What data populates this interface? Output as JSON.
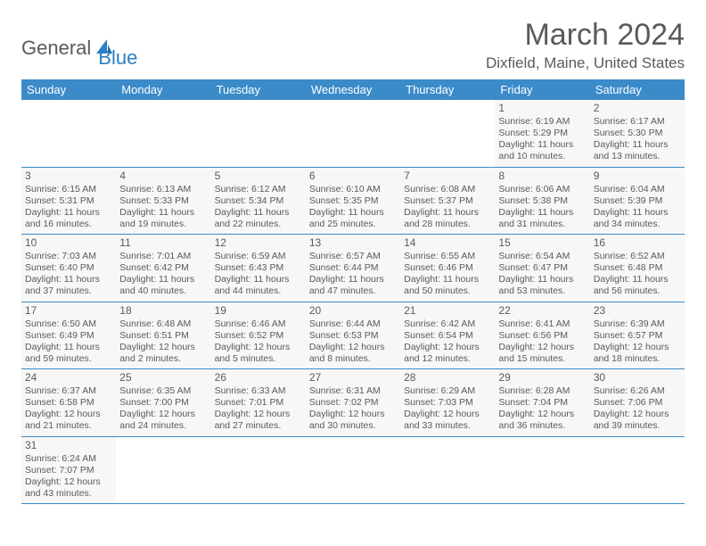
{
  "logo": {
    "general": "General",
    "blue": "Blue"
  },
  "title": "March 2024",
  "location": "Dixfield, Maine, United States",
  "colors": {
    "header_bg": "#3b8bc9",
    "header_text": "#ffffff",
    "cell_bg": "#f7f7f7",
    "border": "#3b8bc9",
    "text": "#5a5a5a",
    "accent": "#2a7fc5"
  },
  "days_of_week": [
    "Sunday",
    "Monday",
    "Tuesday",
    "Wednesday",
    "Thursday",
    "Friday",
    "Saturday"
  ],
  "weeks": [
    [
      null,
      null,
      null,
      null,
      null,
      {
        "n": "1",
        "sunrise": "Sunrise: 6:19 AM",
        "sunset": "Sunset: 5:29 PM",
        "daylight": "Daylight: 11 hours and 10 minutes."
      },
      {
        "n": "2",
        "sunrise": "Sunrise: 6:17 AM",
        "sunset": "Sunset: 5:30 PM",
        "daylight": "Daylight: 11 hours and 13 minutes."
      }
    ],
    [
      {
        "n": "3",
        "sunrise": "Sunrise: 6:15 AM",
        "sunset": "Sunset: 5:31 PM",
        "daylight": "Daylight: 11 hours and 16 minutes."
      },
      {
        "n": "4",
        "sunrise": "Sunrise: 6:13 AM",
        "sunset": "Sunset: 5:33 PM",
        "daylight": "Daylight: 11 hours and 19 minutes."
      },
      {
        "n": "5",
        "sunrise": "Sunrise: 6:12 AM",
        "sunset": "Sunset: 5:34 PM",
        "daylight": "Daylight: 11 hours and 22 minutes."
      },
      {
        "n": "6",
        "sunrise": "Sunrise: 6:10 AM",
        "sunset": "Sunset: 5:35 PM",
        "daylight": "Daylight: 11 hours and 25 minutes."
      },
      {
        "n": "7",
        "sunrise": "Sunrise: 6:08 AM",
        "sunset": "Sunset: 5:37 PM",
        "daylight": "Daylight: 11 hours and 28 minutes."
      },
      {
        "n": "8",
        "sunrise": "Sunrise: 6:06 AM",
        "sunset": "Sunset: 5:38 PM",
        "daylight": "Daylight: 11 hours and 31 minutes."
      },
      {
        "n": "9",
        "sunrise": "Sunrise: 6:04 AM",
        "sunset": "Sunset: 5:39 PM",
        "daylight": "Daylight: 11 hours and 34 minutes."
      }
    ],
    [
      {
        "n": "10",
        "sunrise": "Sunrise: 7:03 AM",
        "sunset": "Sunset: 6:40 PM",
        "daylight": "Daylight: 11 hours and 37 minutes."
      },
      {
        "n": "11",
        "sunrise": "Sunrise: 7:01 AM",
        "sunset": "Sunset: 6:42 PM",
        "daylight": "Daylight: 11 hours and 40 minutes."
      },
      {
        "n": "12",
        "sunrise": "Sunrise: 6:59 AM",
        "sunset": "Sunset: 6:43 PM",
        "daylight": "Daylight: 11 hours and 44 minutes."
      },
      {
        "n": "13",
        "sunrise": "Sunrise: 6:57 AM",
        "sunset": "Sunset: 6:44 PM",
        "daylight": "Daylight: 11 hours and 47 minutes."
      },
      {
        "n": "14",
        "sunrise": "Sunrise: 6:55 AM",
        "sunset": "Sunset: 6:46 PM",
        "daylight": "Daylight: 11 hours and 50 minutes."
      },
      {
        "n": "15",
        "sunrise": "Sunrise: 6:54 AM",
        "sunset": "Sunset: 6:47 PM",
        "daylight": "Daylight: 11 hours and 53 minutes."
      },
      {
        "n": "16",
        "sunrise": "Sunrise: 6:52 AM",
        "sunset": "Sunset: 6:48 PM",
        "daylight": "Daylight: 11 hours and 56 minutes."
      }
    ],
    [
      {
        "n": "17",
        "sunrise": "Sunrise: 6:50 AM",
        "sunset": "Sunset: 6:49 PM",
        "daylight": "Daylight: 11 hours and 59 minutes."
      },
      {
        "n": "18",
        "sunrise": "Sunrise: 6:48 AM",
        "sunset": "Sunset: 6:51 PM",
        "daylight": "Daylight: 12 hours and 2 minutes."
      },
      {
        "n": "19",
        "sunrise": "Sunrise: 6:46 AM",
        "sunset": "Sunset: 6:52 PM",
        "daylight": "Daylight: 12 hours and 5 minutes."
      },
      {
        "n": "20",
        "sunrise": "Sunrise: 6:44 AM",
        "sunset": "Sunset: 6:53 PM",
        "daylight": "Daylight: 12 hours and 8 minutes."
      },
      {
        "n": "21",
        "sunrise": "Sunrise: 6:42 AM",
        "sunset": "Sunset: 6:54 PM",
        "daylight": "Daylight: 12 hours and 12 minutes."
      },
      {
        "n": "22",
        "sunrise": "Sunrise: 6:41 AM",
        "sunset": "Sunset: 6:56 PM",
        "daylight": "Daylight: 12 hours and 15 minutes."
      },
      {
        "n": "23",
        "sunrise": "Sunrise: 6:39 AM",
        "sunset": "Sunset: 6:57 PM",
        "daylight": "Daylight: 12 hours and 18 minutes."
      }
    ],
    [
      {
        "n": "24",
        "sunrise": "Sunrise: 6:37 AM",
        "sunset": "Sunset: 6:58 PM",
        "daylight": "Daylight: 12 hours and 21 minutes."
      },
      {
        "n": "25",
        "sunrise": "Sunrise: 6:35 AM",
        "sunset": "Sunset: 7:00 PM",
        "daylight": "Daylight: 12 hours and 24 minutes."
      },
      {
        "n": "26",
        "sunrise": "Sunrise: 6:33 AM",
        "sunset": "Sunset: 7:01 PM",
        "daylight": "Daylight: 12 hours and 27 minutes."
      },
      {
        "n": "27",
        "sunrise": "Sunrise: 6:31 AM",
        "sunset": "Sunset: 7:02 PM",
        "daylight": "Daylight: 12 hours and 30 minutes."
      },
      {
        "n": "28",
        "sunrise": "Sunrise: 6:29 AM",
        "sunset": "Sunset: 7:03 PM",
        "daylight": "Daylight: 12 hours and 33 minutes."
      },
      {
        "n": "29",
        "sunrise": "Sunrise: 6:28 AM",
        "sunset": "Sunset: 7:04 PM",
        "daylight": "Daylight: 12 hours and 36 minutes."
      },
      {
        "n": "30",
        "sunrise": "Sunrise: 6:26 AM",
        "sunset": "Sunset: 7:06 PM",
        "daylight": "Daylight: 12 hours and 39 minutes."
      }
    ],
    [
      {
        "n": "31",
        "sunrise": "Sunrise: 6:24 AM",
        "sunset": "Sunset: 7:07 PM",
        "daylight": "Daylight: 12 hours and 43 minutes."
      },
      null,
      null,
      null,
      null,
      null,
      null
    ]
  ]
}
